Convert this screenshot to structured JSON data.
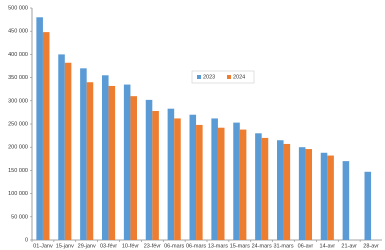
{
  "chart_data": {
    "type": "bar",
    "categories": [
      "01-Janv",
      "15-janv",
      "29-janv",
      "03-févr",
      "10-févr",
      "23-févr",
      "06-mars",
      "06-mars",
      "13-mars",
      "15-mars",
      "24-mars",
      "31-mars",
      "06-avr",
      "14-avr",
      "21-avr",
      "28-avr"
    ],
    "series": [
      {
        "name": "2023",
        "color": "#5b9bd5",
        "values": [
          480000,
          400000,
          370000,
          355000,
          335000,
          302000,
          283000,
          270000,
          262000,
          253000,
          230000,
          215000,
          200000,
          188000,
          170000,
          147000
        ]
      },
      {
        "name": "2024",
        "color": "#ed7d31",
        "values": [
          448000,
          382000,
          340000,
          332000,
          310000,
          278000,
          262000,
          248000,
          242000,
          238000,
          220000,
          207000,
          196000,
          182000,
          null,
          null
        ]
      }
    ],
    "ylim": [
      0,
      500000
    ],
    "yticks": [
      {
        "value": 0,
        "label": "0"
      },
      {
        "value": 50000,
        "label": "50 000"
      },
      {
        "value": 100000,
        "label": "100 000"
      },
      {
        "value": 150000,
        "label": "150 000"
      },
      {
        "value": 200000,
        "label": "200 000"
      },
      {
        "value": 250000,
        "label": "250 000"
      },
      {
        "value": 300000,
        "label": "300 000"
      },
      {
        "value": 350000,
        "label": "350 000"
      },
      {
        "value": 400000,
        "label": "400 000"
      },
      {
        "value": 450000,
        "label": "450 000"
      },
      {
        "value": 500000,
        "label": "500 000"
      }
    ],
    "grid": false,
    "legend": "center"
  }
}
